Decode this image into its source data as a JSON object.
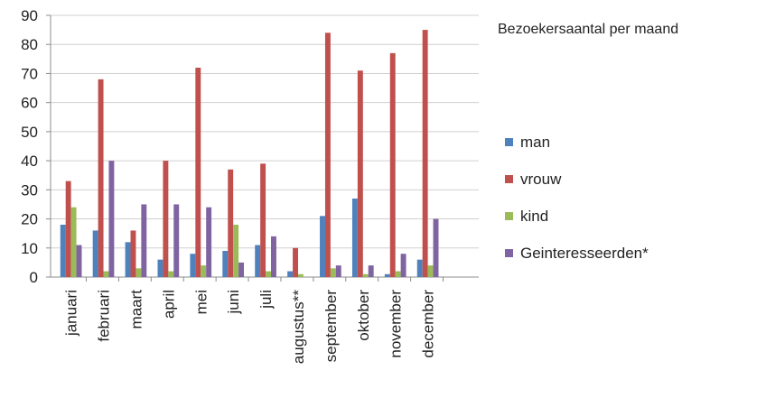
{
  "chart_data": {
    "type": "bar",
    "title": "Bezoekersaantal per maand",
    "xlabel": "",
    "ylabel": "",
    "ylim": [
      0,
      90
    ],
    "yticks": [
      0,
      10,
      20,
      30,
      40,
      50,
      60,
      70,
      80,
      90
    ],
    "grid": true,
    "legend_position": "right",
    "categories": [
      "januari",
      "februari",
      "maart",
      "april",
      "mei",
      "juni",
      "juli",
      "augustus**",
      "september",
      "oktober",
      "november",
      "december"
    ],
    "series": [
      {
        "name": "man",
        "color": "#4f81bd",
        "values": [
          18,
          16,
          12,
          6,
          8,
          9,
          11,
          2,
          21,
          27,
          1,
          6
        ]
      },
      {
        "name": "vrouw",
        "color": "#c0504d",
        "values": [
          33,
          68,
          16,
          40,
          72,
          37,
          39,
          10,
          84,
          71,
          77,
          85
        ]
      },
      {
        "name": "kind",
        "color": "#9bbb59",
        "values": [
          24,
          2,
          3,
          2,
          4,
          18,
          2,
          1,
          3,
          1,
          2,
          4
        ]
      },
      {
        "name": "Geinteresseerden*",
        "color": "#8064a2",
        "values": [
          11,
          40,
          25,
          25,
          24,
          5,
          14,
          0,
          4,
          4,
          8,
          20
        ]
      }
    ]
  }
}
